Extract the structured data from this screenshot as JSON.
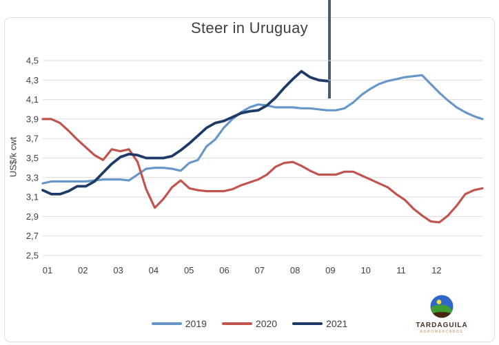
{
  "chart_data": {
    "type": "line",
    "title": "Steer in Uruguay",
    "ylabel": "US$/k cwt",
    "ylim": [
      2.5,
      4.5
    ],
    "y_tick_labels": [
      "4,5",
      "4,3",
      "4,1",
      "3,9",
      "3,7",
      "3,5",
      "3,3",
      "3,1",
      "2,9",
      "2,7",
      "2,5"
    ],
    "x_tick_labels": [
      "01",
      "02",
      "03",
      "04",
      "05",
      "06",
      "07",
      "08",
      "09",
      "10",
      "11",
      "12"
    ],
    "x_unit": "week of year (monthly tick labels)",
    "grid": true,
    "legend_position": "bottom-center",
    "gridline_color": "#dadada",
    "annotation": {
      "type": "vertical_line",
      "x_week": 34,
      "color": "#4a5c6c",
      "note": "marker at end of 2021 series"
    },
    "series": [
      {
        "name": "2019",
        "color": "#6797c9",
        "stroke_width": 3.2,
        "values": [
          3.24,
          3.26,
          3.26,
          3.26,
          3.26,
          3.26,
          3.27,
          3.28,
          3.28,
          3.28,
          3.27,
          3.33,
          3.39,
          3.4,
          3.4,
          3.39,
          3.37,
          3.45,
          3.48,
          3.62,
          3.69,
          3.81,
          3.9,
          3.97,
          4.02,
          4.05,
          4.04,
          4.02,
          4.02,
          4.02,
          4.01,
          4.01,
          4.0,
          3.99,
          3.99,
          4.01,
          4.07,
          4.15,
          4.21,
          4.26,
          4.29,
          4.31,
          4.33,
          4.34,
          4.35,
          4.26,
          4.17,
          4.09,
          4.02,
          3.97,
          3.93,
          3.9
        ]
      },
      {
        "name": "2020",
        "color": "#c2544f",
        "stroke_width": 3.2,
        "values": [
          3.9,
          3.9,
          3.86,
          3.78,
          3.69,
          3.61,
          3.53,
          3.48,
          3.59,
          3.57,
          3.59,
          3.46,
          3.18,
          2.99,
          3.08,
          3.2,
          3.27,
          3.19,
          3.17,
          3.16,
          3.16,
          3.16,
          3.18,
          3.22,
          3.25,
          3.28,
          3.33,
          3.41,
          3.45,
          3.46,
          3.42,
          3.37,
          3.33,
          3.33,
          3.33,
          3.36,
          3.36,
          3.32,
          3.28,
          3.24,
          3.2,
          3.13,
          3.07,
          2.98,
          2.91,
          2.85,
          2.84,
          2.91,
          3.01,
          3.13,
          3.17,
          3.19
        ]
      },
      {
        "name": "2021",
        "color": "#1e3a66",
        "stroke_width": 3.8,
        "values": [
          3.17,
          3.13,
          3.13,
          3.16,
          3.21,
          3.21,
          3.26,
          3.35,
          3.44,
          3.51,
          3.54,
          3.53,
          3.5,
          3.5,
          3.5,
          3.52,
          3.58,
          3.65,
          3.73,
          3.81,
          3.86,
          3.88,
          3.92,
          3.96,
          3.98,
          3.99,
          4.04,
          4.12,
          4.22,
          4.31,
          4.39,
          4.33,
          4.3,
          4.29
        ]
      }
    ]
  },
  "branding": {
    "logo_text": "TARDAGUILA",
    "logo_subtext": "AGROMERCADOS"
  }
}
